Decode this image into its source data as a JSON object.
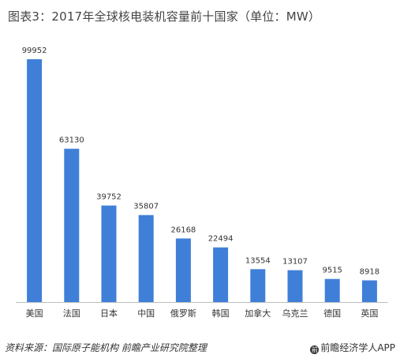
{
  "title": "图表3：2017年全球核电装机容量前十国家（单位：MW）",
  "footer": {
    "source": "资料来源：国际原子能机构  前瞻产业研究院整理",
    "brand": "前瞻经济学人APP"
  },
  "colors": {
    "bar": "#3f7fd8",
    "axis": "#bfbfbf"
  },
  "chart_data": {
    "type": "bar",
    "categories": [
      "美国",
      "法国",
      "日本",
      "中国",
      "俄罗斯",
      "韩国",
      "加拿大",
      "乌克兰",
      "德国",
      "英国"
    ],
    "values": [
      99952,
      63130,
      39752,
      35807,
      26168,
      22494,
      13554,
      13107,
      9515,
      8918
    ],
    "title": "图表3：2017年全球核电装机容量前十国家（单位：MW）",
    "xlabel": "",
    "ylabel": "",
    "ylim": [
      0,
      100000
    ],
    "grid": false,
    "legend": "none"
  }
}
